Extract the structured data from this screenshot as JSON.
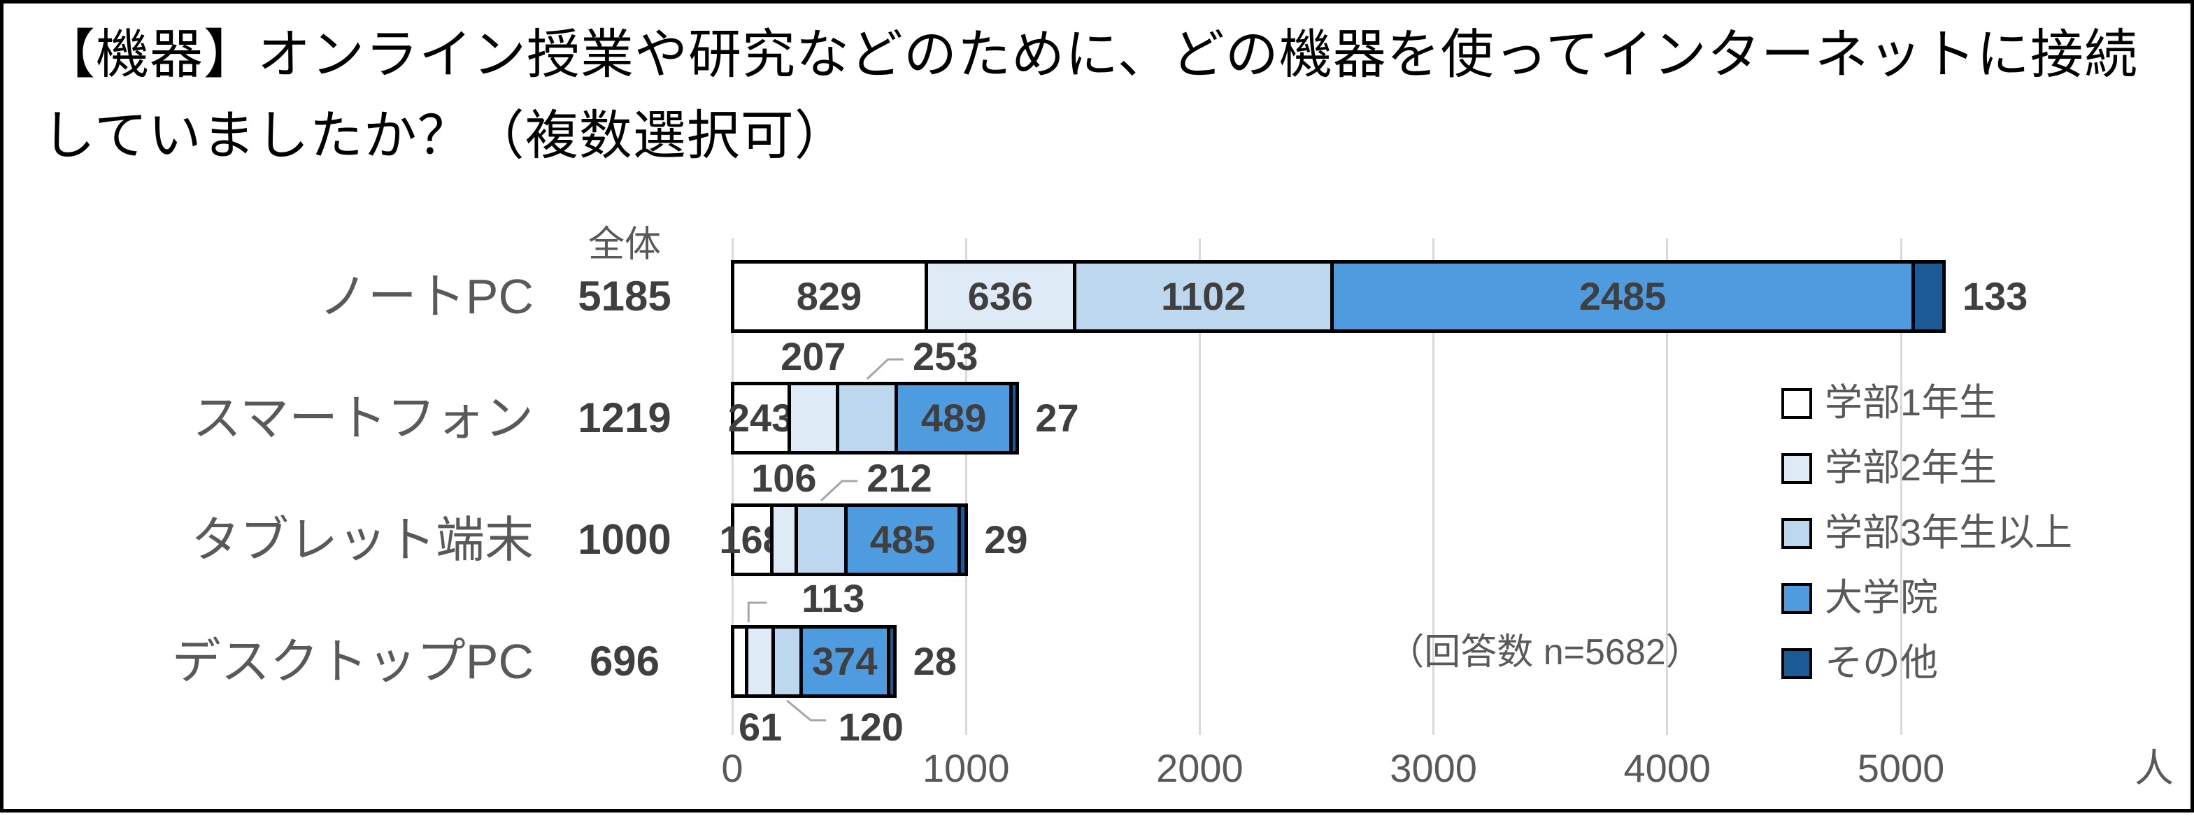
{
  "chart_data": {
    "type": "bar",
    "orientation": "horizontal",
    "stacked": true,
    "title": "【機器】オンライン授業や研究などのために、どの機器を使ってインターネットに接続していましたか？（複数選択可）",
    "note": "（回答数 n=5682）",
    "unit": "人",
    "totals_header": "全体",
    "categories": [
      "ノートPC",
      "スマートフォン",
      "タブレット端末",
      "デスクトップPC"
    ],
    "totals": [
      5185,
      1219,
      1000,
      696
    ],
    "series": [
      {
        "name": "学部1年生",
        "color": "#ffffff",
        "values": [
          829,
          243,
          168,
          61
        ]
      },
      {
        "name": "学部2年生",
        "color": "#deebf7",
        "values": [
          636,
          207,
          106,
          113
        ]
      },
      {
        "name": "学部3年生以上",
        "color": "#bdd7ee",
        "values": [
          1102,
          253,
          212,
          120
        ]
      },
      {
        "name": "大学院",
        "color": "#4e9bdf",
        "values": [
          2485,
          489,
          485,
          374
        ]
      },
      {
        "name": "その他",
        "color": "#1b5a94",
        "values": [
          133,
          27,
          29,
          28
        ]
      }
    ],
    "x_ticks": [
      0,
      1000,
      2000,
      3000,
      4000,
      5000
    ],
    "x_max": 5800,
    "grid": true,
    "legend_position": "right",
    "label_layout": [
      [
        "in",
        "in",
        "in",
        "in",
        "out"
      ],
      [
        "in",
        "above",
        "above-leader",
        "in",
        "out"
      ],
      [
        "in",
        "above",
        "above-leader",
        "in",
        "out"
      ],
      [
        "below",
        "above-elbow",
        "below-leader",
        "in",
        "out"
      ]
    ],
    "colors": {
      "grid": "#d9d9d9",
      "bar_border": "#000000",
      "value_text": "#3f3f3f",
      "label_text": "#595959",
      "leader": "#a6a6a6",
      "title_text": "#000000"
    }
  }
}
